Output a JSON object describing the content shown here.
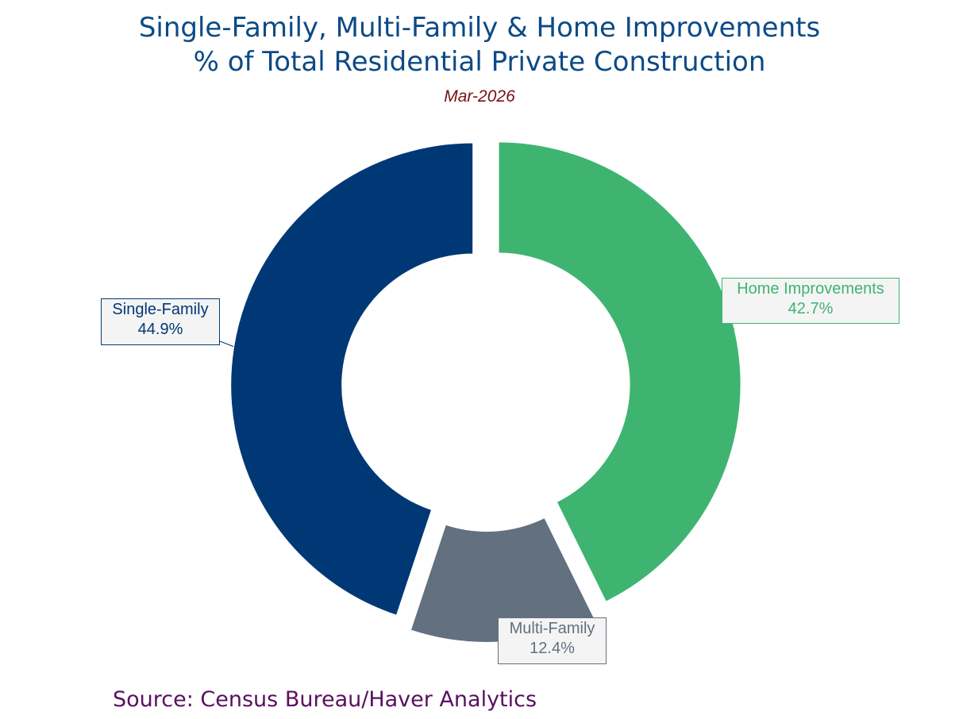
{
  "chart_data": {
    "type": "pie",
    "variant": "donut",
    "title": "Single-Family, Multi-Family & Home Improvements",
    "title_line2": "% of Total Residential Private Construction",
    "subtitle": "Mar-2026",
    "slices": [
      {
        "name": "Home Improvements",
        "value": 42.7,
        "label": "42.7%",
        "color": "#3fb471"
      },
      {
        "name": "Multi-Family",
        "value": 12.4,
        "label": "12.4%",
        "color": "#627080"
      },
      {
        "name": "Single-Family",
        "value": 44.9,
        "label": "44.9%",
        "color": "#003876"
      }
    ],
    "legend": "none",
    "source": "Source: Census Bureau/Haver Analytics"
  },
  "colors": {
    "title": "#0c4a86",
    "subtitle": "#7a1010",
    "source": "#5a1060"
  }
}
